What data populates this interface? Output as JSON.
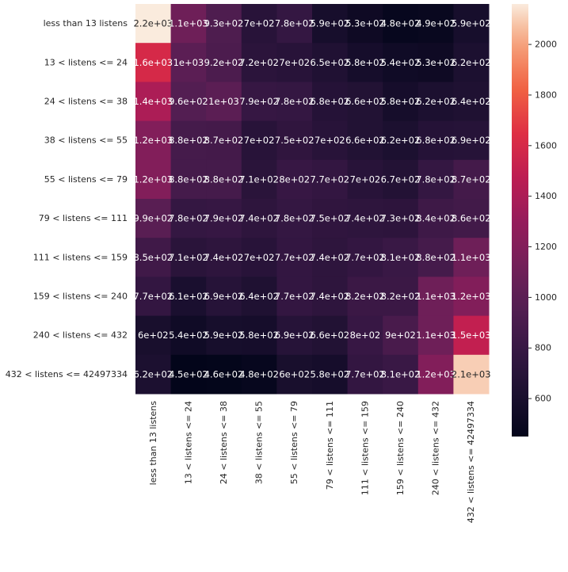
{
  "chart_data": {
    "type": "heatmap",
    "title": "",
    "xlabel": "",
    "ylabel": "",
    "row_labels": [
      "less than 13 listens",
      "13 < listens <= 24",
      "24 < listens <= 38",
      "38 < listens <= 55",
      "55 < listens <= 79",
      "79 < listens <= 111",
      "111 < listens <= 159",
      "159 < listens <= 240",
      "240 < listens <= 432",
      "432 < listens <= 42497334"
    ],
    "col_labels": [
      "less than 13 listens",
      "13 < listens <= 24",
      "24 < listens <= 38",
      "38 < listens <= 55",
      "55 < listens <= 79",
      "79 < listens <= 111",
      "111 < listens <= 159",
      "159 < listens <= 240",
      "240 < listens <= 432",
      "432 < listens <= 42497334"
    ],
    "values": [
      [
        2160,
        1100,
        930,
        700,
        780,
        590,
        530,
        480,
        490,
        590
      ],
      [
        1600,
        1000,
        920,
        720,
        700,
        650,
        580,
        540,
        530,
        620
      ],
      [
        1400,
        960,
        1000,
        790,
        780,
        680,
        660,
        580,
        620,
        640
      ],
      [
        1200,
        880,
        870,
        700,
        750,
        700,
        660,
        620,
        680,
        690
      ],
      [
        1200,
        880,
        880,
        710,
        800,
        770,
        700,
        670,
        780,
        870
      ],
      [
        990,
        780,
        790,
        740,
        780,
        750,
        740,
        730,
        840,
        860
      ],
      [
        850,
        710,
        740,
        700,
        770,
        740,
        770,
        810,
        880,
        1100
      ],
      [
        770,
        610,
        690,
        640,
        770,
        740,
        820,
        820,
        1100,
        1200
      ],
      [
        600,
        540,
        590,
        580,
        690,
        660,
        800,
        900,
        1100,
        1500
      ],
      [
        620,
        450,
        460,
        480,
        600,
        580,
        770,
        810,
        1200,
        2100
      ]
    ],
    "cell_labels": [
      [
        "2.2e+03",
        "1.1e+03",
        "9.3e+02",
        "7e+02",
        "7.8e+02",
        "5.9e+02",
        "5.3e+02",
        "4.8e+02",
        "4.9e+02",
        "5.9e+02"
      ],
      [
        "1.6e+03",
        "1e+03",
        "9.2e+02",
        "7.2e+02",
        "7e+02",
        "6.5e+02",
        "5.8e+02",
        "5.4e+02",
        "5.3e+02",
        "6.2e+02"
      ],
      [
        "1.4e+03",
        "9.6e+02",
        "1e+03",
        "7.9e+02",
        "7.8e+02",
        "6.8e+02",
        "6.6e+02",
        "5.8e+02",
        "6.2e+02",
        "6.4e+02"
      ],
      [
        "1.2e+03",
        "8.8e+02",
        "8.7e+02",
        "7e+02",
        "7.5e+02",
        "7e+02",
        "6.6e+02",
        "6.2e+02",
        "6.8e+02",
        "6.9e+02"
      ],
      [
        "1.2e+03",
        "8.8e+02",
        "8.8e+02",
        "7.1e+02",
        "8e+02",
        "7.7e+02",
        "7e+02",
        "6.7e+02",
        "7.8e+02",
        "8.7e+02"
      ],
      [
        "9.9e+02",
        "7.8e+02",
        "7.9e+02",
        "7.4e+02",
        "7.8e+02",
        "7.5e+02",
        "7.4e+02",
        "7.3e+02",
        "8.4e+02",
        "8.6e+02"
      ],
      [
        "8.5e+02",
        "7.1e+02",
        "7.4e+02",
        "7e+02",
        "7.7e+02",
        "7.4e+02",
        "7.7e+02",
        "8.1e+02",
        "8.8e+02",
        "1.1e+03"
      ],
      [
        "7.7e+02",
        "6.1e+02",
        "6.9e+02",
        "6.4e+02",
        "7.7e+02",
        "7.4e+02",
        "8.2e+02",
        "8.2e+02",
        "1.1e+03",
        "1.2e+03"
      ],
      [
        "6e+02",
        "5.4e+02",
        "5.9e+02",
        "5.8e+02",
        "6.9e+02",
        "6.6e+02",
        "8e+02",
        "9e+02",
        "1.1e+03",
        "1.5e+03"
      ],
      [
        "6.2e+02",
        "4.5e+02",
        "4.6e+02",
        "4.8e+02",
        "6e+02",
        "5.8e+02",
        "7.7e+02",
        "8.1e+02",
        "1.2e+03",
        "2.1e+03"
      ]
    ],
    "colorbar": {
      "min": 450,
      "max": 2160,
      "ticks": [
        600,
        800,
        1000,
        1200,
        1400,
        1600,
        1800,
        2000
      ],
      "colormap": "rocket"
    },
    "grid": false
  }
}
